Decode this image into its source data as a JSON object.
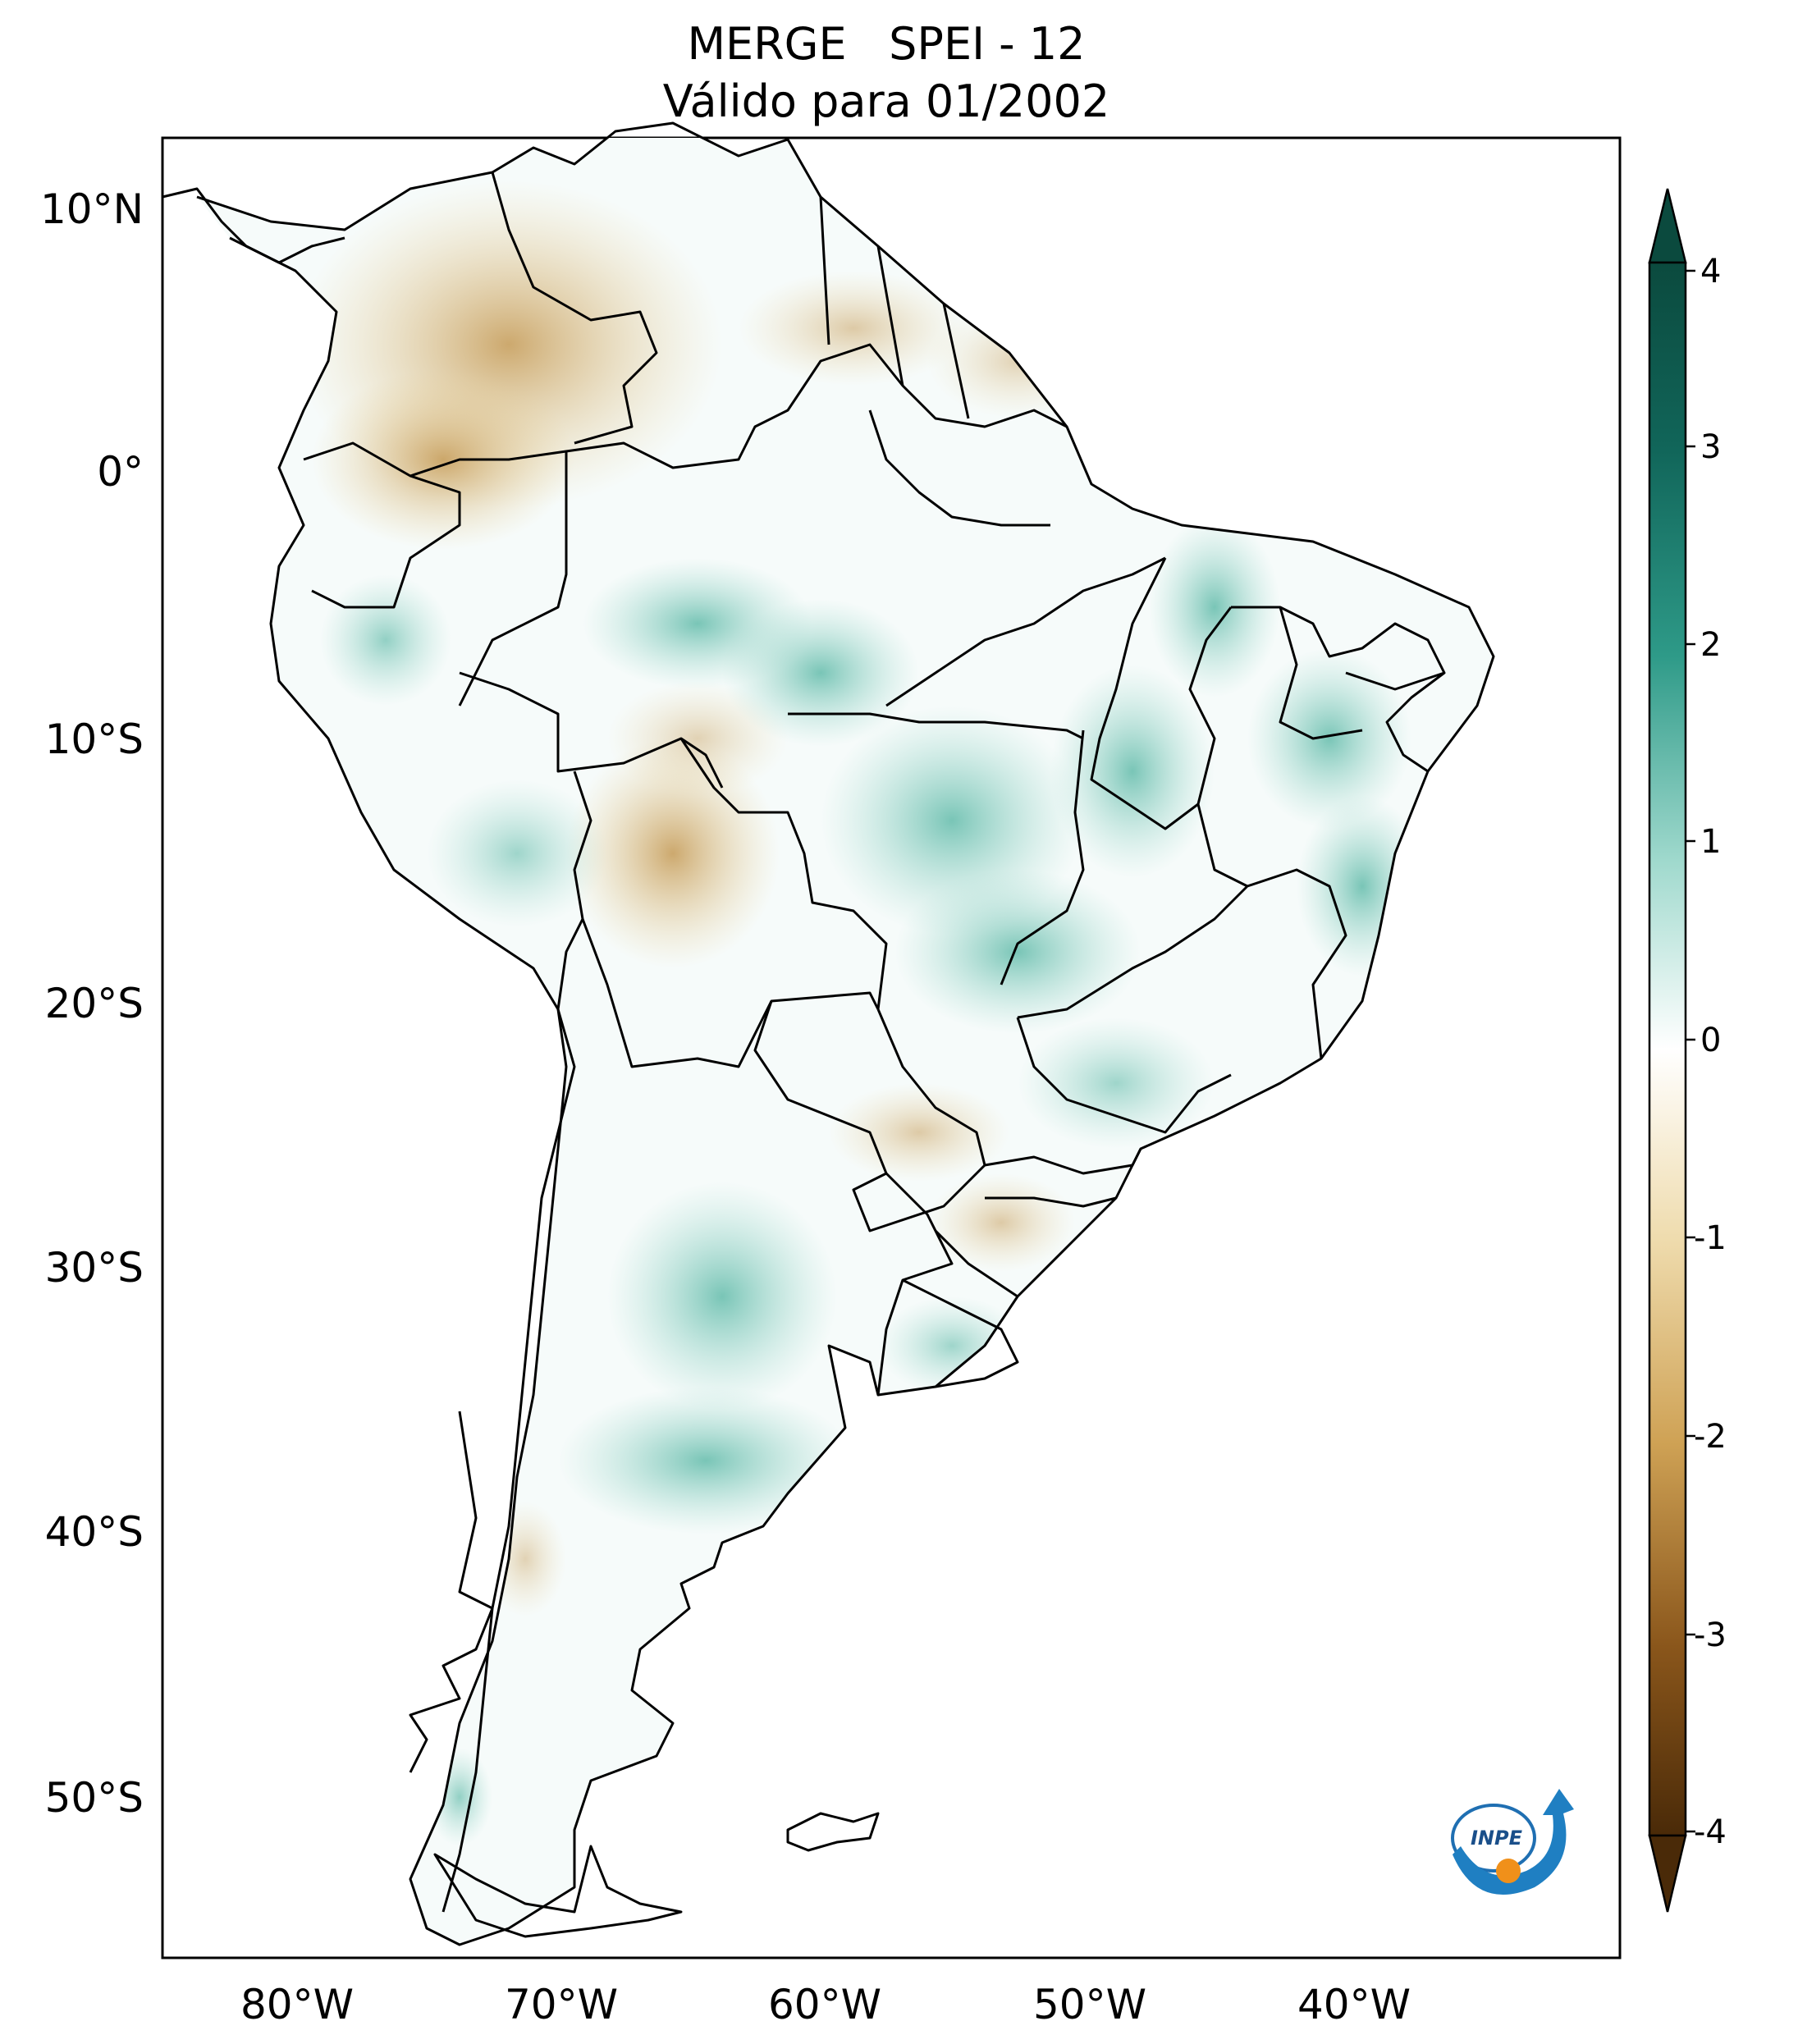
{
  "title": {
    "line1": "MERGE   SPEI - 12",
    "line2": "Válido para 01/2002"
  },
  "axes": {
    "lat_ticks": [
      "10°N",
      "0°",
      "10°S",
      "20°S",
      "30°S",
      "40°S",
      "50°S"
    ],
    "lon_ticks": [
      "80°W",
      "70°W",
      "60°W",
      "50°W",
      "40°W"
    ]
  },
  "colorbar": {
    "ticks": [
      "4",
      "3",
      "2",
      "1",
      "0",
      "-1",
      "-2",
      "-3",
      "-4"
    ],
    "range": [
      -4,
      4
    ],
    "colors": {
      "max": "#0b4a3e",
      "high": "#1f8a78",
      "mid_high": "#8fd3c5",
      "zero": "#ffffff",
      "mid_low": "#e9d29c",
      "low": "#b8862f",
      "min": "#4a2a08"
    }
  },
  "logo": {
    "text": "INPE"
  }
}
